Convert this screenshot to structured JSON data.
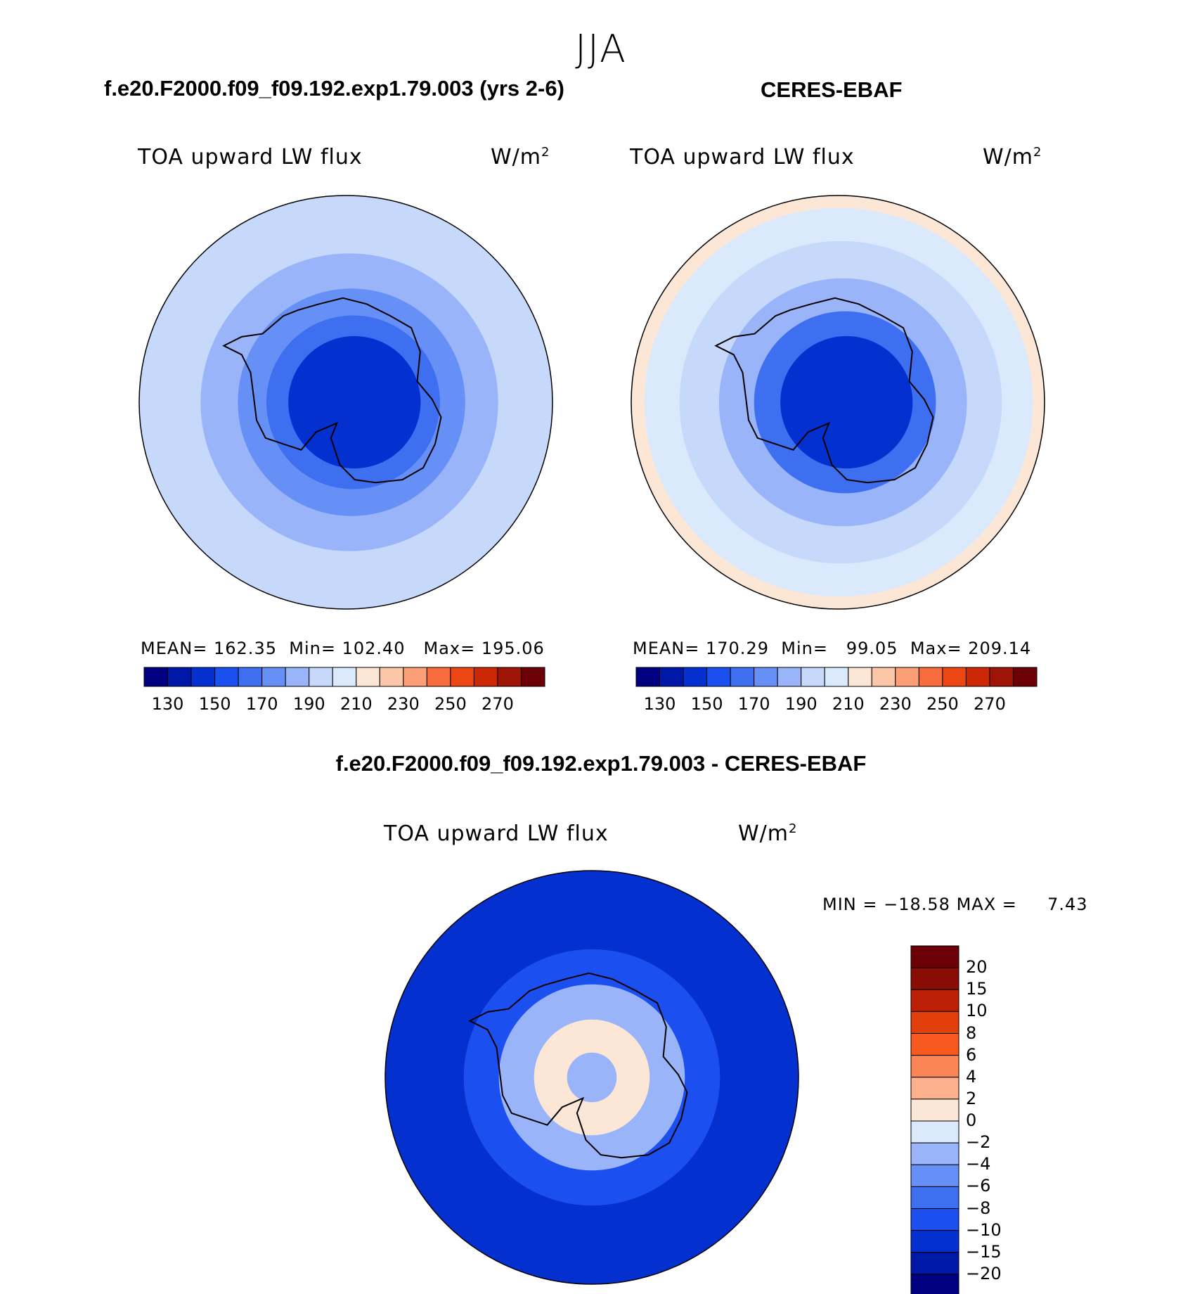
{
  "season": "JJA",
  "titles": {
    "left": "f.e20.F2000.f09_f09.192.exp1.79.003 (yrs 2-6)",
    "right": "CERES-EBAF",
    "diff": "f.e20.F2000.f09_f09.192.exp1.79.003 - CERES-EBAF"
  },
  "chart_data": [
    {
      "type": "heatmap",
      "name": "model",
      "projection": "south-polar-stereographic",
      "variable": "TOA upward LW flux",
      "units": "W/m",
      "units_exp": "2",
      "stats": {
        "mean_label": "MEAN=",
        "mean": "162.35",
        "min_label": "Min=",
        "min": "102.40",
        "max_label": "Max=",
        "max": "195.06"
      },
      "colorbar": {
        "levels": [
          120,
          130,
          140,
          150,
          160,
          170,
          180,
          190,
          200,
          210,
          220,
          230,
          240,
          250,
          260,
          270
        ],
        "tick_labels": [
          "130",
          "150",
          "170",
          "190",
          "210",
          "230",
          "250",
          "270"
        ],
        "colors": [
          "#000080",
          "#0018a8",
          "#0530d0",
          "#1c4ff0",
          "#3d6ff0",
          "#6690f5",
          "#9ab4fa",
          "#c6d9fb",
          "#dbe9fc",
          "#fce6d6",
          "#fcc6a9",
          "#fc9f76",
          "#f86d3d",
          "#ec4712",
          "#cc2805",
          "#9e1407",
          "#6b0006"
        ]
      },
      "rings": [
        {
          "r_frac": 1.0,
          "level": 185
        },
        {
          "r_frac": 0.9,
          "level": 180
        },
        {
          "r_frac": 0.72,
          "level": 175
        },
        {
          "r_frac": 0.55,
          "level": 165
        },
        {
          "r_frac": 0.42,
          "level": 150
        },
        {
          "r_frac": 0.32,
          "level": 130
        }
      ]
    },
    {
      "type": "heatmap",
      "name": "observed",
      "projection": "south-polar-stereographic",
      "variable": "TOA upward LW flux",
      "units": "W/m",
      "units_exp": "2",
      "stats": {
        "mean_label": "MEAN=",
        "mean": "170.29",
        "min_label": "Min=",
        "min": "99.05",
        "max_label": "Max=",
        "max": "209.14"
      },
      "colorbar": {
        "levels": [
          120,
          130,
          140,
          150,
          160,
          170,
          180,
          190,
          200,
          210,
          220,
          230,
          240,
          250,
          260,
          270
        ],
        "tick_labels": [
          "130",
          "150",
          "170",
          "190",
          "210",
          "230",
          "250",
          "270"
        ],
        "colors": [
          "#000080",
          "#0018a8",
          "#0530d0",
          "#1c4ff0",
          "#3d6ff0",
          "#6690f5",
          "#9ab4fa",
          "#c6d9fb",
          "#dbe9fc",
          "#fce6d6",
          "#fcc6a9",
          "#fc9f76",
          "#f86d3d",
          "#ec4712",
          "#cc2805",
          "#9e1407",
          "#6b0006"
        ]
      },
      "rings": [
        {
          "r_frac": 1.0,
          "level": 205
        },
        {
          "r_frac": 0.94,
          "level": 195
        },
        {
          "r_frac": 0.78,
          "level": 185
        },
        {
          "r_frac": 0.6,
          "level": 175
        },
        {
          "r_frac": 0.44,
          "level": 155
        },
        {
          "r_frac": 0.32,
          "level": 130
        }
      ]
    },
    {
      "type": "heatmap",
      "name": "difference",
      "projection": "south-polar-stereographic",
      "variable": "TOA upward LW flux",
      "units": "W/m",
      "units_exp": "2",
      "stats": {
        "min_label": "MIN =",
        "min": "−18.58",
        "max_label": "MAX =",
        "max": "7.43"
      },
      "colorbar": {
        "levels": [
          -20,
          -15,
          -10,
          -8,
          -6,
          -4,
          -2,
          0,
          2,
          4,
          6,
          8,
          10,
          15,
          20
        ],
        "tick_labels": [
          "20",
          "15",
          "10",
          "8",
          "6",
          "4",
          "2",
          "0",
          "−2",
          "−4",
          "−6",
          "−8",
          "−10",
          "−15",
          "−20"
        ],
        "colors": [
          "#000080",
          "#0018a8",
          "#0530d0",
          "#1c4ff0",
          "#3d6ff0",
          "#6690f5",
          "#9ab4fa",
          "#dbe9fc",
          "#fce6d6",
          "#fcb08c",
          "#fc8556",
          "#f8591f",
          "#e23f0c",
          "#bb2006",
          "#8a0d05",
          "#6b0006"
        ]
      },
      "rings": [
        {
          "r_frac": 1.0,
          "level": -12
        },
        {
          "r_frac": 0.62,
          "level": -9
        },
        {
          "r_frac": 0.45,
          "level": -3
        },
        {
          "r_frac": 0.28,
          "level": 1
        },
        {
          "r_frac": 0.12,
          "level": -3
        }
      ]
    }
  ]
}
